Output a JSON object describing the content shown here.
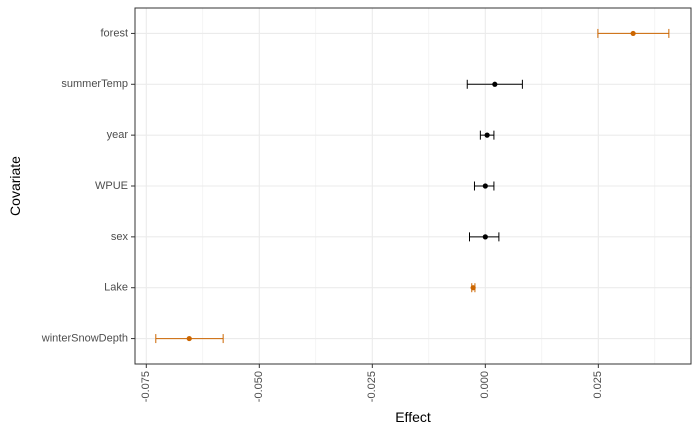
{
  "chart_data": {
    "type": "scatter",
    "subtype": "forest-plot-point-range",
    "title": "",
    "xlabel": "Effect",
    "ylabel": "Covariate",
    "xlim": [
      -0.0775,
      0.0455
    ],
    "x_ticks": [
      -0.075,
      -0.05,
      -0.025,
      0.0,
      0.025
    ],
    "x_tick_labels": [
      "-0.075",
      "-0.050",
      "-0.025",
      "0.000",
      "0.025"
    ],
    "x_tick_label_rotation": "vertical",
    "grid": true,
    "legend": "none",
    "colors": {
      "significant": "#cc6600",
      "non_significant": "#000000",
      "grid": "#ebebeb",
      "panel_border": "#333333"
    },
    "categories": [
      "forest",
      "summerTemp",
      "year",
      "WPUE",
      "sex",
      "Lake",
      "winterSnowDepth"
    ],
    "points": [
      {
        "covariate": "forest",
        "estimate": 0.0327,
        "lower": 0.0249,
        "upper": 0.0406,
        "significant": true
      },
      {
        "covariate": "summerTemp",
        "estimate": 0.0021,
        "lower": -0.004,
        "upper": 0.0082,
        "significant": false
      },
      {
        "covariate": "year",
        "estimate": 0.0004,
        "lower": -0.0011,
        "upper": 0.0019,
        "significant": false
      },
      {
        "covariate": "WPUE",
        "estimate": 0.0,
        "lower": -0.0024,
        "upper": 0.0019,
        "significant": false
      },
      {
        "covariate": "sex",
        "estimate": 0.0,
        "lower": -0.0035,
        "upper": 0.003,
        "significant": false
      },
      {
        "covariate": "Lake",
        "estimate": -0.0027,
        "lower": -0.003,
        "upper": -0.0023,
        "significant": true
      },
      {
        "covariate": "winterSnowDepth",
        "estimate": -0.0655,
        "lower": -0.0729,
        "upper": -0.058,
        "significant": true
      }
    ]
  }
}
